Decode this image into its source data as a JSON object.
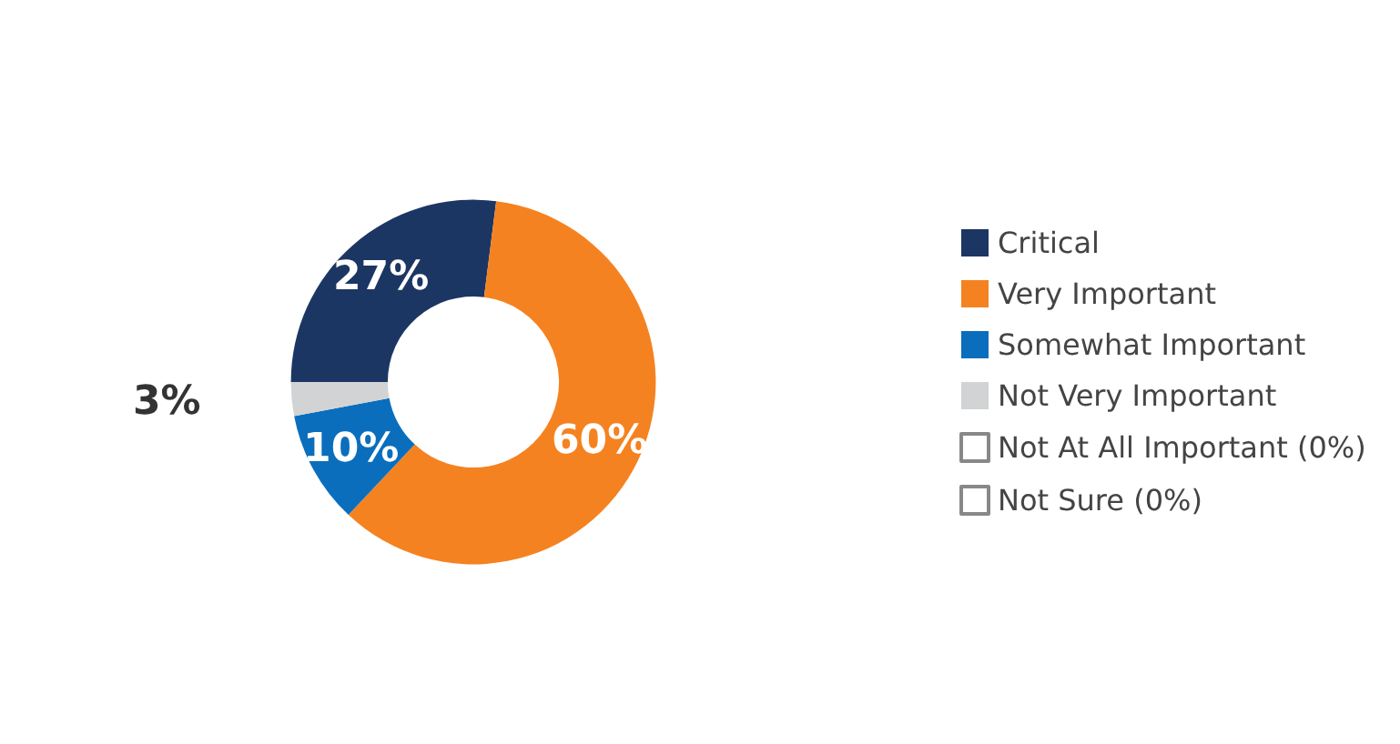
{
  "chart_data": {
    "type": "donut",
    "categories": [
      "Critical",
      "Very Important",
      "Somewhat Important",
      "Not Very Important",
      "Not At All Important (0%)",
      "Not Sure (0%)"
    ],
    "values": [
      27,
      60,
      10,
      3,
      0,
      0
    ],
    "colors": [
      "#1c3664",
      "#f58220",
      "#0a6ebd",
      "#d1d3d4",
      "#ffffff",
      "#ffffff"
    ],
    "value_labels": [
      "27%",
      "60%",
      "10%",
      "3%",
      null,
      null
    ],
    "legend": "right"
  }
}
